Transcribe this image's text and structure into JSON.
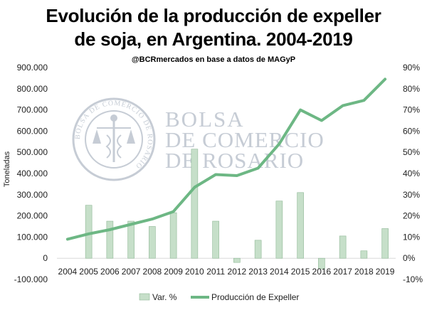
{
  "title_line1": "Evolución de la producción de expeller",
  "title_line2": "de soja, en Argentina. 2004-2019",
  "subtitle": "@BCRmercados en base a datos de MAGyP",
  "watermark": {
    "line1": "BOLSA",
    "line2": "DE COMERCIO",
    "line3": "DE ROSARIO",
    "seal_text": "BOLSA DE COMERCIO DE ROSARIO"
  },
  "colors": {
    "bar_fill": "#c6dfc9",
    "bar_stroke": "#8fb896",
    "line": "#6db784",
    "gridline": "#d9d9d9",
    "watermark": "#c3cad3"
  },
  "chart_data": {
    "type": "bar+line",
    "categories": [
      "2004",
      "2005",
      "2006",
      "2007",
      "2008",
      "2009",
      "2010",
      "2011",
      "2012",
      "2013",
      "2014",
      "2015",
      "2016",
      "2017",
      "2018",
      "2019"
    ],
    "series": [
      {
        "name": "Var. %",
        "type": "bar",
        "axis": "right",
        "values": [
          null,
          25,
          17.5,
          17.5,
          15,
          21.5,
          51.5,
          17.5,
          -2,
          8.5,
          27,
          31,
          -5,
          10.5,
          3.5,
          14
        ]
      },
      {
        "name": "Producción de Expeller",
        "type": "line",
        "axis": "left",
        "values": [
          90000,
          115000,
          135000,
          160000,
          185000,
          220000,
          335000,
          395000,
          390000,
          425000,
          540000,
          700000,
          650000,
          720000,
          745000,
          845000
        ]
      }
    ],
    "ylabel": "Toneladas",
    "y_left": {
      "min": -100000,
      "max": 900000,
      "step": 100000,
      "tick_labels": [
        "-100.000",
        "0",
        "100.000",
        "200.000",
        "300.000",
        "400.000",
        "500.000",
        "600.000",
        "700.000",
        "800.000",
        "900.000"
      ]
    },
    "y_right": {
      "min": -10,
      "max": 90,
      "step": 10,
      "tick_labels": [
        "-10%",
        "0%",
        "10%",
        "20%",
        "30%",
        "40%",
        "50%",
        "60%",
        "70%",
        "80%",
        "90%"
      ]
    },
    "grid": false,
    "legend_position": "bottom"
  }
}
